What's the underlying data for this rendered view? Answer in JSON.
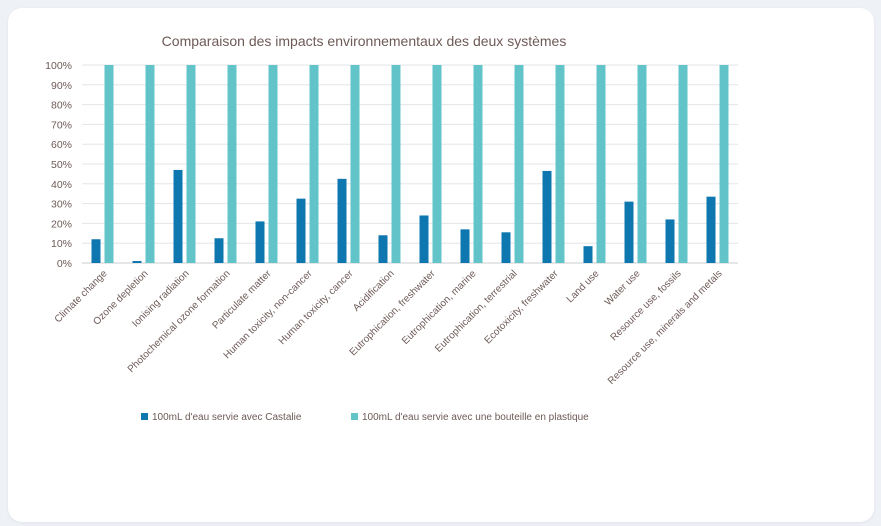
{
  "chart_data": {
    "type": "bar",
    "title": "Comparaison des impacts environnementaux des deux systèmes",
    "categories": [
      "Climate change",
      "Ozone depletion",
      "Ionising radiation",
      "Photochemical ozone formation",
      "Particulate matter",
      "Human toxicity, non-cancer",
      "Human toxicity, cancer",
      "Acidification",
      "Eutrophication, freshwater",
      "Eutrophication, marine",
      "Eutrophication, terrestrial",
      "Ecotoxicity, freshwater",
      "Land use",
      "Water use",
      "Resource use, fossils",
      "Resource use, minerals and metals"
    ],
    "series": [
      {
        "name": "100mL d'eau servie avec Castalie",
        "color": "#0e77b0",
        "values": [
          12,
          1,
          47,
          12.5,
          21,
          32.5,
          42.5,
          14,
          24,
          17,
          15.5,
          46.5,
          8.5,
          31,
          22,
          33.5
        ]
      },
      {
        "name": "100mL d'eau servie avec une bouteille en plastique",
        "color": "#62c3c8",
        "values": [
          100,
          100,
          100,
          100,
          100,
          100,
          100,
          100,
          100,
          100,
          100,
          100,
          100,
          100,
          100,
          100
        ]
      }
    ],
    "ylim": [
      0,
      100
    ],
    "yticks": [
      "0%",
      "10%",
      "20%",
      "30%",
      "40%",
      "50%",
      "60%",
      "70%",
      "80%",
      "90%",
      "100%"
    ],
    "grid": true,
    "legend_position": "bottom"
  }
}
